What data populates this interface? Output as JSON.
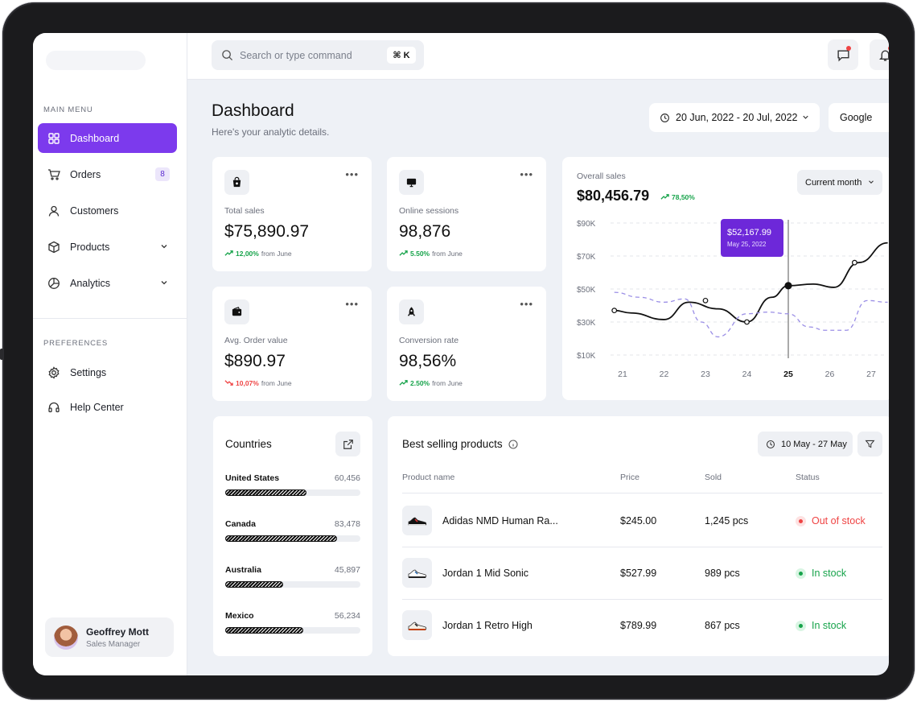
{
  "sidebar": {
    "main_menu_label": "MAIN MENU",
    "items": [
      {
        "label": "Dashboard",
        "icon": "grid-icon",
        "active": true
      },
      {
        "label": "Orders",
        "icon": "cart-icon",
        "badge": "8"
      },
      {
        "label": "Customers",
        "icon": "user-icon"
      },
      {
        "label": "Products",
        "icon": "box-icon"
      },
      {
        "label": "Analytics",
        "icon": "pie-chart-icon"
      }
    ],
    "preferences_label": "PREFERENCES",
    "pref_items": [
      {
        "label": "Settings",
        "icon": "gear-icon"
      },
      {
        "label": "Help Center",
        "icon": "headset-icon"
      }
    ],
    "user": {
      "name": "Geoffrey Mott",
      "role": "Sales Manager"
    }
  },
  "topbar": {
    "search_placeholder": "Search or type command",
    "shortcut": "⌘ K"
  },
  "header": {
    "title": "Dashboard",
    "subtitle": "Here's your analytic details.",
    "date_range": "20 Jun, 2022 - 20 Jul, 2022",
    "source": "Google"
  },
  "stats": [
    {
      "label": "Total sales",
      "value": "$75,890.97",
      "delta": "12,00%",
      "suffix": "from June",
      "trend": "up",
      "icon": "shopping-bag-icon"
    },
    {
      "label": "Online sessions",
      "value": "98,876",
      "delta": "5.50%",
      "suffix": "from June",
      "trend": "up",
      "icon": "monitor-icon"
    },
    {
      "label": "Avg. Order value",
      "value": "$890.97",
      "delta": "10,07%",
      "suffix": "from June",
      "trend": "down",
      "icon": "wallet-icon"
    },
    {
      "label": "Conversion rate",
      "value": "98,56%",
      "delta": "2.50%",
      "suffix": "from June",
      "trend": "up",
      "icon": "rocket-icon"
    }
  ],
  "overall_sales": {
    "label": "Overall sales",
    "value": "$80,456.79",
    "delta": "78,50%",
    "period": "Current month",
    "tooltip_value": "$52,167.99",
    "tooltip_date": "May 25, 2022"
  },
  "chart_data": {
    "type": "line",
    "x": [
      "21",
      "22",
      "23",
      "24",
      "25",
      "26",
      "27"
    ],
    "y_ticks": [
      "$90K",
      "$70K",
      "$50K",
      "$30K",
      "$10K"
    ],
    "ylim": [
      10,
      90
    ],
    "highlight_x": "25",
    "series": [
      {
        "style": "solid",
        "color": "#111111",
        "points": [
          [
            20.8,
            37
          ],
          [
            21.2,
            35.5
          ],
          [
            22.0,
            31.5
          ],
          [
            22.6,
            42
          ],
          [
            23.3,
            38
          ],
          [
            24.0,
            30
          ],
          [
            24.6,
            45
          ],
          [
            25.0,
            52
          ],
          [
            25.6,
            53
          ],
          [
            26.1,
            51
          ],
          [
            26.7,
            66
          ],
          [
            27.4,
            78
          ]
        ]
      },
      {
        "style": "dashed",
        "color": "#9b8fe6",
        "points": [
          [
            20.8,
            48
          ],
          [
            21.4,
            45
          ],
          [
            22.0,
            42
          ],
          [
            22.5,
            44
          ],
          [
            22.9,
            30
          ],
          [
            23.3,
            21
          ],
          [
            24.0,
            35
          ],
          [
            24.5,
            36
          ],
          [
            25.0,
            35
          ],
          [
            25.5,
            27
          ],
          [
            25.9,
            25
          ],
          [
            26.4,
            25
          ],
          [
            26.9,
            43
          ],
          [
            27.4,
            42
          ]
        ]
      }
    ],
    "markers": [
      [
        20.8,
        37
      ],
      [
        23.0,
        43
      ],
      [
        24.0,
        30
      ],
      [
        25.0,
        52
      ],
      [
        26.6,
        66
      ]
    ]
  },
  "countries": {
    "title": "Countries",
    "rows": [
      {
        "name": "United States",
        "value": "60,456",
        "share": 0.6
      },
      {
        "name": "Canada",
        "value": "83,478",
        "share": 0.83
      },
      {
        "name": "Australia",
        "value": "45,897",
        "share": 0.43
      },
      {
        "name": "Mexico",
        "value": "56,234",
        "share": 0.58
      }
    ]
  },
  "products": {
    "title": "Best selling products",
    "date_range": "10 May - 27 May",
    "columns": [
      "Product name",
      "Price",
      "Sold",
      "Status"
    ],
    "rows": [
      {
        "name": "Adidas NMD Human Ra...",
        "price": "$245.00",
        "sold": "1,245 pcs",
        "status": "Out of stock",
        "in_stock": false
      },
      {
        "name": "Jordan 1 Mid Sonic",
        "price": "$527.99",
        "sold": "989 pcs",
        "status": "In stock",
        "in_stock": true
      },
      {
        "name": "Jordan 1 Retro High",
        "price": "$789.99",
        "sold": "867 pcs",
        "status": "In stock",
        "in_stock": true
      }
    ]
  }
}
